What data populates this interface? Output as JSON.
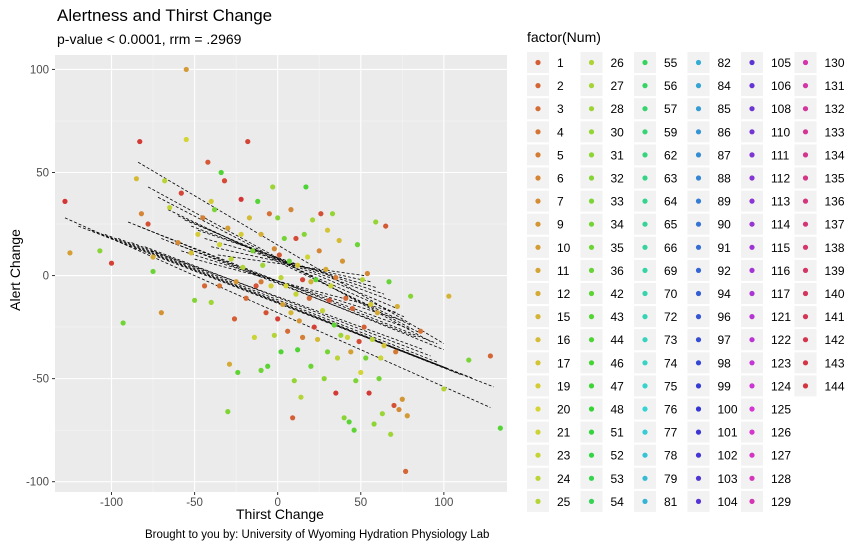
{
  "chart_data": {
    "type": "scatter",
    "title": "Alertness and Thirst Change",
    "subtitle": "p-value < 0.0001, rrm = .2969",
    "xlabel": "Thirst Change",
    "ylabel": "Alert Change",
    "caption": "Brought to you by: University of Wyoming Hydration Physiology Lab",
    "xlim": [
      -134,
      138
    ],
    "ylim": [
      -105,
      107
    ],
    "x_ticks": [
      -100,
      -50,
      0,
      50,
      100
    ],
    "y_ticks": [
      -100,
      -50,
      0,
      50,
      100
    ],
    "grid": true,
    "legend_title": "factor(Num)",
    "legend_position": "right",
    "legend_levels": [
      "1",
      "2",
      "3",
      "4",
      "5",
      "6",
      "7",
      "9",
      "10",
      "11",
      "12",
      "15",
      "16",
      "17",
      "19",
      "20",
      "21",
      "23",
      "24",
      "25",
      "26",
      "27",
      "28",
      "30",
      "31",
      "32",
      "33",
      "34",
      "35",
      "36",
      "42",
      "43",
      "44",
      "46",
      "47",
      "48",
      "51",
      "52",
      "53",
      "54",
      "55",
      "56",
      "57",
      "59",
      "62",
      "63",
      "64",
      "65",
      "66",
      "69",
      "70",
      "72",
      "73",
      "74",
      "75",
      "76",
      "77",
      "78",
      "79",
      "81",
      "82",
      "84",
      "85",
      "86",
      "87",
      "88",
      "89",
      "90",
      "91",
      "92",
      "94",
      "96",
      "97",
      "98",
      "99",
      "100",
      "101",
      "102",
      "103",
      "104",
      "105",
      "106",
      "108",
      "110",
      "111",
      "112",
      "113",
      "114",
      "115",
      "116",
      "117",
      "121",
      "122",
      "123",
      "124",
      "125",
      "126",
      "127",
      "128",
      "129",
      "130",
      "131",
      "132",
      "133",
      "134",
      "135",
      "136",
      "137",
      "138",
      "139",
      "140",
      "141",
      "142",
      "143",
      "144"
    ],
    "points": [
      [
        -128,
        36,
        0
      ],
      [
        -125,
        11,
        40
      ],
      [
        -107,
        12,
        88
      ],
      [
        -100,
        6,
        4
      ],
      [
        -93,
        -23,
        98
      ],
      [
        -83,
        65,
        2
      ],
      [
        -85,
        47,
        50
      ],
      [
        -82,
        30,
        30
      ],
      [
        -78,
        25,
        10
      ],
      [
        -75,
        2,
        100
      ],
      [
        -75,
        9,
        45
      ],
      [
        -70,
        -18,
        35
      ],
      [
        -68,
        46,
        70
      ],
      [
        -65,
        33,
        67
      ],
      [
        -60,
        16,
        32
      ],
      [
        -58,
        40,
        6
      ],
      [
        -55,
        66,
        60
      ],
      [
        -55,
        100,
        38
      ],
      [
        -52,
        11,
        52
      ],
      [
        -50,
        -12,
        90
      ],
      [
        -48,
        20,
        56
      ],
      [
        -45,
        28,
        28
      ],
      [
        -44,
        -5,
        18
      ],
      [
        -42,
        55,
        14
      ],
      [
        -40,
        36,
        56
      ],
      [
        -40,
        -13,
        80
      ],
      [
        -38,
        32,
        94
      ],
      [
        -35,
        15,
        62
      ],
      [
        -35,
        -5,
        24
      ],
      [
        -34,
        50,
        110
      ],
      [
        -32,
        46,
        8
      ],
      [
        -30,
        23,
        40
      ],
      [
        -30,
        -66,
        92
      ],
      [
        -29,
        -43,
        44
      ],
      [
        -28,
        8,
        70
      ],
      [
        -26,
        -21,
        16
      ],
      [
        -25,
        -3,
        36
      ],
      [
        -24,
        -47,
        104
      ],
      [
        -22,
        20,
        56
      ],
      [
        -22,
        37,
        0
      ],
      [
        -21,
        4,
        74
      ],
      [
        -19,
        -11,
        20
      ],
      [
        -18,
        65,
        6
      ],
      [
        -17,
        28,
        50
      ],
      [
        -15,
        12,
        94
      ],
      [
        -14,
        -30,
        64
      ],
      [
        -13,
        -5,
        12
      ],
      [
        -12,
        36,
        108
      ],
      [
        -10,
        -46,
        98
      ],
      [
        -10,
        -3,
        26
      ],
      [
        -10,
        20,
        46
      ],
      [
        -9,
        5,
        80
      ],
      [
        -7,
        -18,
        10
      ],
      [
        -6,
        -44,
        106
      ],
      [
        -5,
        30,
        22
      ],
      [
        -4,
        -5,
        58
      ],
      [
        -3,
        43,
        82
      ],
      [
        -2,
        13,
        32
      ],
      [
        -2,
        -29,
        72
      ],
      [
        0,
        -21,
        4
      ],
      [
        0,
        28,
        90
      ],
      [
        1,
        10,
        14
      ],
      [
        2,
        -1,
        70
      ],
      [
        2,
        -37,
        110
      ],
      [
        3,
        -14,
        40
      ],
      [
        4,
        18,
        96
      ],
      [
        5,
        -5,
        60
      ],
      [
        6,
        -27,
        20
      ],
      [
        7,
        7,
        100
      ],
      [
        8,
        -18,
        48
      ],
      [
        8,
        32,
        30
      ],
      [
        9,
        -69,
        16
      ],
      [
        10,
        -51,
        84
      ],
      [
        11,
        -9,
        66
      ],
      [
        11,
        18,
        8
      ],
      [
        12,
        5,
        54
      ],
      [
        12,
        -36,
        110
      ],
      [
        13,
        -22,
        36
      ],
      [
        14,
        -59,
        72
      ],
      [
        15,
        -2,
        6
      ],
      [
        15,
        -30,
        28
      ],
      [
        16,
        20,
        90
      ],
      [
        17,
        43,
        112
      ],
      [
        18,
        9,
        62
      ],
      [
        19,
        -11,
        20
      ],
      [
        20,
        -44,
        100
      ],
      [
        20,
        -3,
        46
      ],
      [
        21,
        27,
        78
      ],
      [
        22,
        -25,
        4
      ],
      [
        23,
        -2,
        104
      ],
      [
        24,
        -31,
        50
      ],
      [
        25,
        12,
        30
      ],
      [
        26,
        30,
        10
      ],
      [
        27,
        -17,
        66
      ],
      [
        28,
        -50,
        86
      ],
      [
        29,
        3,
        44
      ],
      [
        30,
        22,
        54
      ],
      [
        30,
        -37,
        96
      ],
      [
        31,
        -12,
        12
      ],
      [
        32,
        -5,
        64
      ],
      [
        33,
        30,
        84
      ],
      [
        34,
        -24,
        104
      ],
      [
        35,
        -1,
        26
      ],
      [
        35,
        -57,
        2
      ],
      [
        36,
        -40,
        70
      ],
      [
        37,
        17,
        50
      ],
      [
        38,
        -29,
        82
      ],
      [
        39,
        7,
        36
      ],
      [
        40,
        -69,
        88
      ],
      [
        41,
        -11,
        20
      ],
      [
        42,
        -30,
        64
      ],
      [
        43,
        -71,
        106
      ],
      [
        44,
        -37,
        40
      ],
      [
        45,
        -16,
        18
      ],
      [
        46,
        -75,
        104
      ],
      [
        47,
        -51,
        92
      ],
      [
        48,
        15,
        100
      ],
      [
        49,
        -32,
        8
      ],
      [
        50,
        -47,
        60
      ],
      [
        51,
        -2,
        74
      ],
      [
        52,
        -25,
        16
      ],
      [
        53,
        -40,
        96
      ],
      [
        54,
        1,
        30
      ],
      [
        55,
        -57,
        2
      ],
      [
        56,
        -14,
        56
      ],
      [
        57,
        -31,
        70
      ],
      [
        58,
        -72,
        86
      ],
      [
        59,
        26,
        84
      ],
      [
        60,
        -18,
        44
      ],
      [
        61,
        -50,
        96
      ],
      [
        62,
        -40,
        64
      ],
      [
        63,
        -67,
        82
      ],
      [
        64,
        -34,
        54
      ],
      [
        65,
        24,
        14
      ],
      [
        67,
        -3,
        102
      ],
      [
        68,
        -77,
        80
      ],
      [
        70,
        -63,
        10
      ],
      [
        71,
        -37,
        26
      ],
      [
        72,
        -15,
        46
      ],
      [
        73,
        -65,
        32
      ],
      [
        75,
        -60,
        36
      ],
      [
        77,
        -95,
        18
      ],
      [
        78,
        -68,
        38
      ],
      [
        80,
        -10,
        90
      ],
      [
        86,
        -27,
        24
      ],
      [
        100,
        -55,
        72
      ],
      [
        103,
        -10,
        48
      ],
      [
        115,
        -41,
        94
      ],
      [
        128,
        -39,
        18
      ],
      [
        134,
        -74,
        108
      ]
    ],
    "fit_lines": [
      [
        -128,
        28,
        128,
        -64
      ],
      [
        -120,
        24,
        130,
        -54
      ],
      [
        -112,
        22,
        118,
        -50
      ],
      [
        -104,
        20,
        110,
        -48
      ],
      [
        -96,
        18,
        102,
        -45
      ],
      [
        -88,
        16,
        96,
        -42
      ],
      [
        -80,
        14,
        92,
        -39
      ],
      [
        -76,
        12,
        88,
        -36
      ],
      [
        -84,
        55,
        100,
        -33
      ],
      [
        -78,
        43,
        92,
        -32
      ],
      [
        -72,
        38,
        86,
        -28
      ],
      [
        -66,
        32,
        80,
        -24
      ],
      [
        -60,
        29,
        76,
        -20
      ],
      [
        -56,
        27,
        72,
        -16
      ],
      [
        -52,
        24,
        68,
        -12
      ],
      [
        -48,
        22,
        64,
        -9
      ],
      [
        -44,
        18,
        60,
        -6
      ],
      [
        -40,
        14,
        56,
        -3
      ],
      [
        -36,
        10,
        52,
        0
      ],
      [
        -90,
        26,
        100,
        -36
      ],
      [
        -84,
        24,
        96,
        -33
      ],
      [
        -70,
        18,
        84,
        -30
      ],
      [
        -64,
        16,
        80,
        -26
      ],
      [
        -58,
        12,
        76,
        -22
      ],
      [
        -50,
        8,
        72,
        -18
      ]
    ]
  }
}
